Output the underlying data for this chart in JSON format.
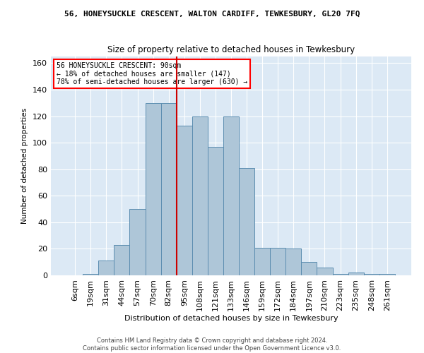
{
  "title1": "56, HONEYSUCKLE CRESCENT, WALTON CARDIFF, TEWKESBURY, GL20 7FQ",
  "title2": "Size of property relative to detached houses in Tewkesbury",
  "xlabel": "Distribution of detached houses by size in Tewkesbury",
  "ylabel": "Number of detached properties",
  "annotation_line1": "56 HONEYSUCKLE CRESCENT: 90sqm",
  "annotation_line2": "← 18% of detached houses are smaller (147)",
  "annotation_line3": "78% of semi-detached houses are larger (630) →",
  "bar_labels": [
    "6sqm",
    "19sqm",
    "31sqm",
    "44sqm",
    "57sqm",
    "70sqm",
    "82sqm",
    "95sqm",
    "108sqm",
    "121sqm",
    "133sqm",
    "146sqm",
    "159sqm",
    "172sqm",
    "184sqm",
    "197sqm",
    "210sqm",
    "223sqm",
    "235sqm",
    "248sqm",
    "261sqm"
  ],
  "bar_values": [
    0,
    1,
    11,
    23,
    50,
    130,
    130,
    113,
    120,
    97,
    120,
    81,
    21,
    21,
    20,
    10,
    6,
    1,
    2,
    1,
    1
  ],
  "bar_color": "#aec6d8",
  "bar_edge_color": "#5b8db0",
  "vline_color": "#cc0000",
  "bg_color": "#dce9f5",
  "footnote": "Contains HM Land Registry data © Crown copyright and database right 2024.\nContains public sector information licensed under the Open Government Licence v3.0.",
  "ylim": [
    0,
    165
  ],
  "yticks": [
    0,
    20,
    40,
    60,
    80,
    100,
    120,
    140,
    160
  ],
  "vline_pos": 6.5
}
